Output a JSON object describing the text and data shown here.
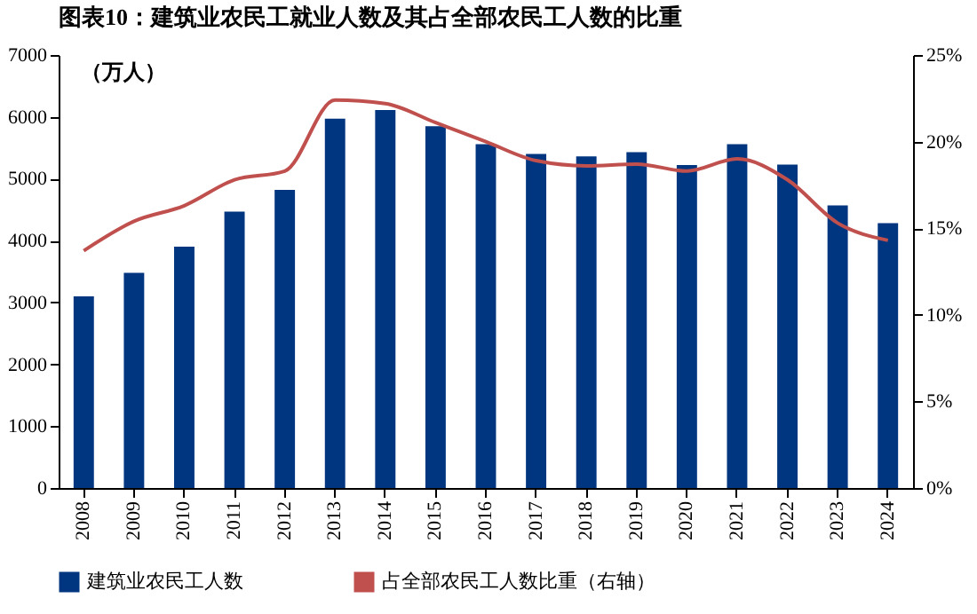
{
  "chart_data": {
    "type": "bar",
    "title": "图表10：建筑业农民工就业人数及其占全部农民工人数的比重",
    "categories": [
      "2008",
      "2009",
      "2010",
      "2011",
      "2012",
      "2013",
      "2014",
      "2015",
      "2016",
      "2017",
      "2018",
      "2019",
      "2020",
      "2021",
      "2022",
      "2023",
      "2024"
    ],
    "ylabel": "（万人）",
    "series": [
      {
        "name": "建筑业农民工人数",
        "color": "#003580",
        "values": [
          3100,
          3480,
          3900,
          4470,
          4820,
          5970,
          6110,
          5850,
          5560,
          5400,
          5360,
          5430,
          5220,
          5560,
          5230,
          4570,
          4280
        ]
      },
      {
        "name": "占全部农民工人数比重（右轴）",
        "type": "line",
        "axis": "y2",
        "color": "#c0504d",
        "values": [
          13.7,
          15.4,
          16.3,
          17.8,
          18.3,
          22.4,
          22.2,
          21.1,
          20.0,
          18.9,
          18.6,
          18.7,
          18.3,
          19.0,
          17.8,
          15.3,
          14.3
        ]
      }
    ],
    "ylim": [
      0,
      7000
    ],
    "yticks": [
      0,
      1000,
      2000,
      3000,
      4000,
      5000,
      6000,
      7000
    ],
    "y2lim": [
      0,
      25
    ],
    "y2ticks": [
      {
        "value": 0,
        "label": "0%"
      },
      {
        "value": 5,
        "label": "5%"
      },
      {
        "value": 10,
        "label": "10%"
      },
      {
        "value": 15,
        "label": "15%"
      },
      {
        "value": 20,
        "label": "20%"
      },
      {
        "value": 25,
        "label": "25%"
      }
    ],
    "grid": false,
    "legend": "bottom",
    "marker": "none",
    "line_style": "solid"
  }
}
